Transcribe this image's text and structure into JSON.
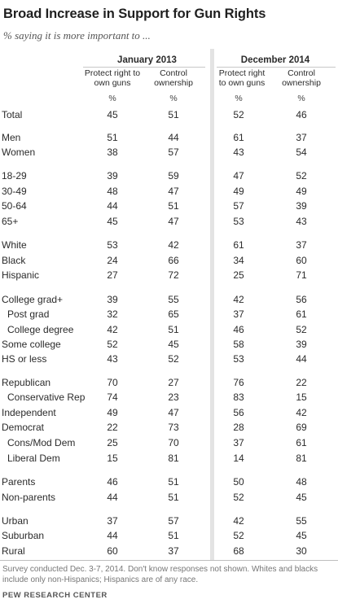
{
  "title": "Broad Increase in Support for Gun Rights",
  "subtitle": "% saying it is more important to ...",
  "columns": {
    "period_1": "January 2013",
    "period_2": "December 2014",
    "p1_protect": [
      "Protect right to",
      "own guns"
    ],
    "p1_control": [
      "Control",
      "ownership"
    ],
    "p2_protect": [
      "Protect right",
      "to own guns"
    ],
    "p2_control": [
      "Control",
      "ownership"
    ],
    "pct": "%"
  },
  "chart_data": {
    "type": "table",
    "columns": [
      "Jan 2013 Protect right to own guns",
      "Jan 2013 Control ownership",
      "Dec 2014 Protect right to own guns",
      "Dec 2014 Control ownership"
    ],
    "rows": [
      {
        "label": "Total",
        "values": [
          45,
          51,
          52,
          46
        ]
      },
      {
        "label": "Men",
        "values": [
          51,
          44,
          61,
          37
        ]
      },
      {
        "label": "Women",
        "values": [
          38,
          57,
          43,
          54
        ]
      },
      {
        "label": "18-29",
        "values": [
          39,
          59,
          47,
          52
        ]
      },
      {
        "label": "30-49",
        "values": [
          48,
          47,
          49,
          49
        ]
      },
      {
        "label": "50-64",
        "values": [
          44,
          51,
          57,
          39
        ]
      },
      {
        "label": "65+",
        "values": [
          45,
          47,
          53,
          43
        ]
      },
      {
        "label": "White",
        "values": [
          53,
          42,
          61,
          37
        ]
      },
      {
        "label": "Black",
        "values": [
          24,
          66,
          34,
          60
        ]
      },
      {
        "label": "Hispanic",
        "values": [
          27,
          72,
          25,
          71
        ]
      },
      {
        "label": "College grad+",
        "values": [
          39,
          55,
          42,
          56
        ]
      },
      {
        "label": "Post grad",
        "values": [
          32,
          65,
          37,
          61
        ],
        "indent": true
      },
      {
        "label": "College degree",
        "values": [
          42,
          51,
          46,
          52
        ],
        "indent": true
      },
      {
        "label": "Some college",
        "values": [
          52,
          45,
          58,
          39
        ]
      },
      {
        "label": "HS or less",
        "values": [
          43,
          52,
          53,
          44
        ]
      },
      {
        "label": "Republican",
        "values": [
          70,
          27,
          76,
          22
        ]
      },
      {
        "label": "Conservative Rep",
        "values": [
          74,
          23,
          83,
          15
        ],
        "indent": true
      },
      {
        "label": "Independent",
        "values": [
          49,
          47,
          56,
          42
        ]
      },
      {
        "label": "Democrat",
        "values": [
          22,
          73,
          28,
          69
        ]
      },
      {
        "label": "Cons/Mod Dem",
        "values": [
          25,
          70,
          37,
          61
        ],
        "indent": true
      },
      {
        "label": "Liberal Dem",
        "values": [
          15,
          81,
          14,
          81
        ],
        "indent": true
      },
      {
        "label": "Parents",
        "values": [
          46,
          51,
          50,
          48
        ]
      },
      {
        "label": "Non-parents",
        "values": [
          44,
          51,
          52,
          45
        ]
      },
      {
        "label": "Urban",
        "values": [
          37,
          57,
          42,
          55
        ]
      },
      {
        "label": "Suburban",
        "values": [
          44,
          51,
          52,
          45
        ]
      },
      {
        "label": "Rural",
        "values": [
          60,
          37,
          68,
          30
        ]
      }
    ]
  },
  "note": "Survey conducted Dec. 3-7, 2014. Don't know responses not shown.  Whites and blacks include only non-Hispanics; Hispanics are of any race.",
  "source": "PEW RESEARCH CENTER"
}
